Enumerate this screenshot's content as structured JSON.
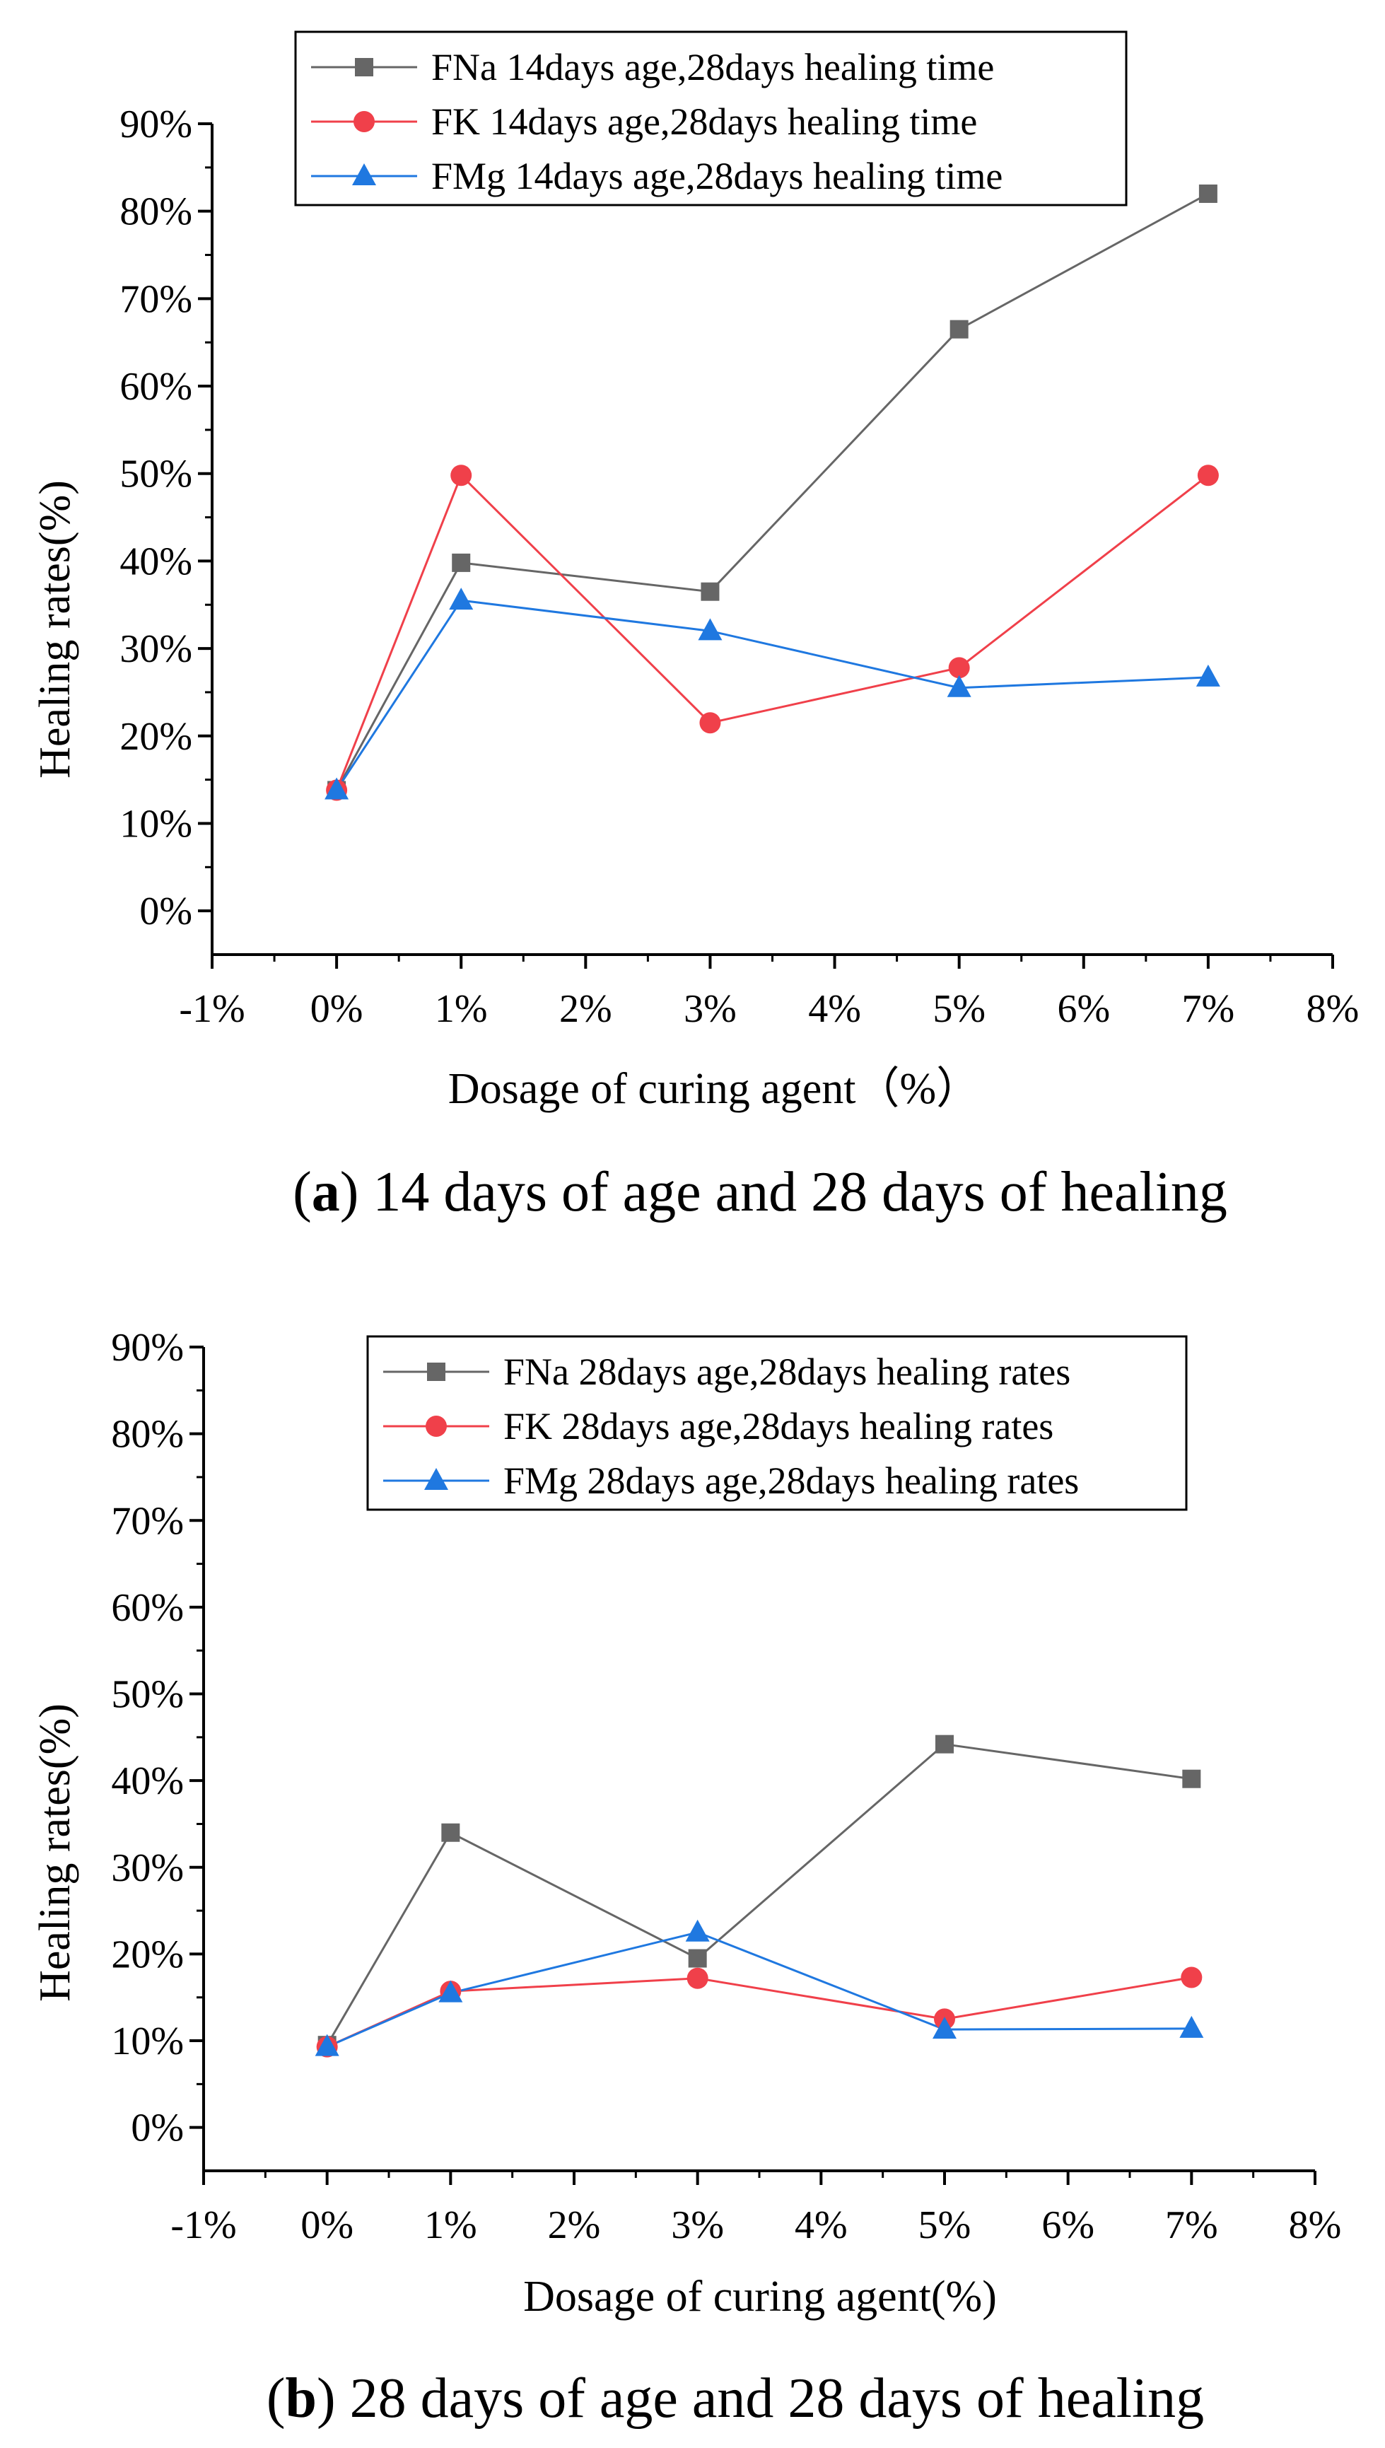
{
  "chart_data": [
    {
      "type": "line",
      "caption_prefix": "(",
      "caption_letter": "a",
      "caption_rest": ") 14 days of age and 28 days of healing",
      "xlabel": "Dosage of curing agent（%）",
      "ylabel": "Healing rates(%)",
      "xlim": [
        -1,
        8
      ],
      "ylim": [
        -5,
        90
      ],
      "x_ticks": [
        -1,
        0,
        1,
        2,
        3,
        4,
        5,
        6,
        7,
        8
      ],
      "x_tick_labels": [
        "-1%",
        "0%",
        "1%",
        "2%",
        "3%",
        "4%",
        "5%",
        "6%",
        "7%",
        "8%"
      ],
      "y_ticks": [
        0,
        10,
        20,
        30,
        40,
        50,
        60,
        70,
        80,
        90
      ],
      "y_tick_labels": [
        "0%",
        "10%",
        "20%",
        "30%",
        "40%",
        "50%",
        "60%",
        "70%",
        "80%",
        "90%"
      ],
      "x": [
        0,
        1,
        3,
        5,
        7
      ],
      "legend_position": "top-right",
      "series": [
        {
          "name": "FNa 14days age,28days healing time",
          "color": "#666666",
          "marker": "square",
          "values": [
            13.8,
            39.8,
            36.5,
            66.5,
            82.0
          ]
        },
        {
          "name": "FK  14days age,28days healing time",
          "color": "#f0404a",
          "marker": "circle",
          "values": [
            13.8,
            49.8,
            21.5,
            27.8,
            49.8
          ]
        },
        {
          "name": "FMg 14days age,28days healing time",
          "color": "#1f78e0",
          "marker": "triangle",
          "values": [
            13.8,
            35.5,
            32.0,
            25.5,
            26.7
          ]
        }
      ]
    },
    {
      "type": "line",
      "caption_prefix": "(",
      "caption_letter": "b",
      "caption_rest": ") 28 days of age and 28 days of healing",
      "xlabel": "Dosage of curing agent(%)",
      "ylabel": "Healing rates(%)",
      "xlim": [
        -1,
        8
      ],
      "ylim": [
        -5,
        90
      ],
      "x_ticks": [
        -1,
        0,
        1,
        2,
        3,
        4,
        5,
        6,
        7,
        8
      ],
      "x_tick_labels": [
        "-1%",
        "0%",
        "1%",
        "2%",
        "3%",
        "4%",
        "5%",
        "6%",
        "7%",
        "8%"
      ],
      "y_ticks": [
        0,
        10,
        20,
        30,
        40,
        50,
        60,
        70,
        80,
        90
      ],
      "y_tick_labels": [
        "0%",
        "10%",
        "20%",
        "30%",
        "40%",
        "50%",
        "60%",
        "70%",
        "80%",
        "90%"
      ],
      "x": [
        0,
        1,
        3,
        5,
        7
      ],
      "legend_position": "top-right",
      "series": [
        {
          "name": "FNa 28days age,28days healing rates",
          "color": "#666666",
          "marker": "square",
          "values": [
            9.5,
            34.0,
            19.5,
            44.2,
            40.2
          ]
        },
        {
          "name": "FK  28days age,28days healing rates",
          "color": "#f0404a",
          "marker": "circle",
          "values": [
            9.3,
            15.7,
            17.2,
            12.5,
            17.3
          ]
        },
        {
          "name": "FMg 28days age,28days healing rates",
          "color": "#1f78e0",
          "marker": "triangle",
          "values": [
            9.3,
            15.5,
            22.5,
            11.3,
            11.4
          ]
        }
      ]
    }
  ]
}
